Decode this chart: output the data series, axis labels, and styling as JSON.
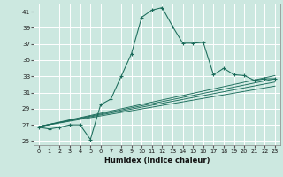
{
  "xlabel": "Humidex (Indice chaleur)",
  "bg_color": "#cce8e0",
  "grid_color": "#ffffff",
  "line_color": "#1a6b5a",
  "xlim": [
    -0.5,
    23.5
  ],
  "ylim": [
    24.5,
    42.0
  ],
  "yticks": [
    25,
    27,
    29,
    31,
    33,
    35,
    37,
    39,
    41
  ],
  "xticks": [
    0,
    1,
    2,
    3,
    4,
    5,
    6,
    7,
    8,
    9,
    10,
    11,
    12,
    13,
    14,
    15,
    16,
    17,
    18,
    19,
    20,
    21,
    22,
    23
  ],
  "main_line": {
    "x": [
      0,
      1,
      2,
      3,
      4,
      5,
      6,
      7,
      8,
      9,
      10,
      11,
      12,
      13,
      14,
      15,
      16,
      17,
      18,
      19,
      20,
      21,
      22,
      23
    ],
    "y": [
      26.7,
      26.5,
      26.7,
      27.0,
      27.0,
      25.2,
      29.5,
      30.2,
      33.0,
      35.8,
      40.3,
      41.2,
      41.5,
      39.2,
      37.1,
      37.1,
      37.2,
      33.2,
      34.0,
      33.2,
      33.1,
      32.5,
      32.7,
      32.7
    ]
  },
  "straight_lines": [
    {
      "x0": 0,
      "y0": 26.8,
      "x1": 23,
      "y1": 32.3
    },
    {
      "x0": 0,
      "y0": 26.8,
      "x1": 23,
      "y1": 32.7
    },
    {
      "x0": 0,
      "y0": 26.8,
      "x1": 23,
      "y1": 33.1
    },
    {
      "x0": 0,
      "y0": 26.8,
      "x1": 23,
      "y1": 31.8
    }
  ]
}
